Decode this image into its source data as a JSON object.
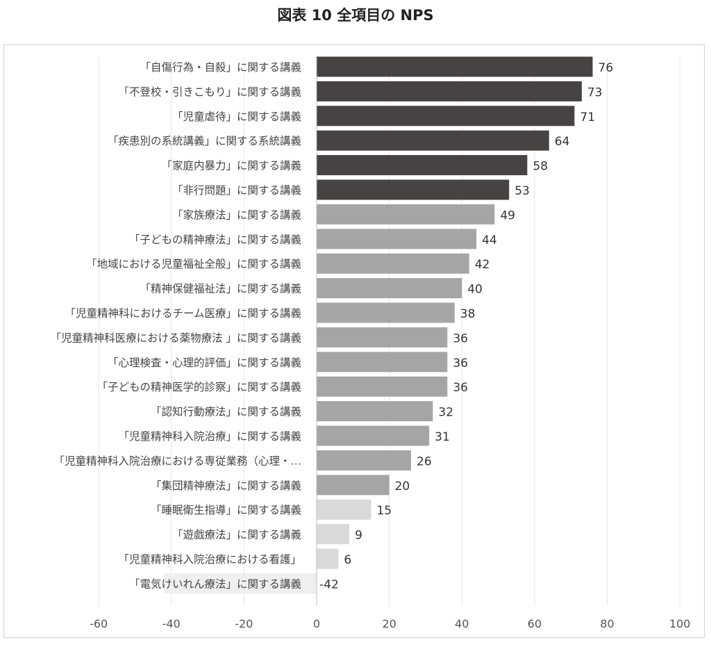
{
  "title": "図表 10 全項目の NPS",
  "chart_data": {
    "type": "bar",
    "orientation": "horizontal",
    "title": "図表 10 全項目の NPS",
    "xlabel": "",
    "ylabel": "",
    "xlim": [
      -60,
      100
    ],
    "x_ticks": [
      "-60",
      "-40",
      "-20",
      "0",
      "20",
      "40",
      "60",
      "80",
      "100"
    ],
    "grid": true,
    "legend": "none",
    "colors": {
      "high": "#474343",
      "mid": "#a5a5a5",
      "low": "#d9d9d9",
      "negative": "#efefef",
      "grid": "#e6e6e6",
      "text": "#444444"
    },
    "categories": [
      "「自傷行為・自殺」に関する講義",
      "「不登校・引きこもり」に関する講義",
      "「児童虐待」に関する講義",
      "「疾患別の系統講義」に関する系統講義",
      "「家庭内暴力」に関する講義",
      "「非行問題」に関する講義",
      "「家族療法」に関する講義",
      "「子どもの精神療法」に関する講義",
      "「地域における児童福祉全般」に関する講義",
      "「精神保健福祉法」に関する講義",
      "「児童精神科におけるチーム医療」に関する講義",
      "「児童精神科医療における薬物療法 」に関する講義",
      "「心理検査・心理的評価」に関する講義",
      "「子どもの精神医学的診察」に関する講義",
      "「認知行動療法」に関する講義",
      "「児童精神科入院治療」に関する講義",
      "「児童精神科入院治療における専従業務（心理・…",
      "「集団精神療法」に関する講義",
      "「睡眠衛生指導」に関する講義",
      "「遊戯療法」に関する講義",
      "「児童精神科入院治療における看護」",
      "「電気けいれん療法」に関する講義"
    ],
    "values": [
      76,
      73,
      71,
      64,
      58,
      53,
      49,
      44,
      42,
      40,
      38,
      36,
      36,
      36,
      32,
      31,
      26,
      20,
      15,
      9,
      6,
      -42
    ],
    "value_labels": [
      "76",
      "73",
      "71",
      "64",
      "58",
      "53",
      "49",
      "44",
      "42",
      "40",
      "38",
      "36",
      "36",
      "36",
      "32",
      "31",
      "26",
      "20",
      "15",
      "9",
      "6",
      "-42"
    ],
    "bar_tier": [
      "high",
      "high",
      "high",
      "high",
      "high",
      "high",
      "mid",
      "mid",
      "mid",
      "mid",
      "mid",
      "mid",
      "mid",
      "mid",
      "mid",
      "mid",
      "mid",
      "mid",
      "low",
      "low",
      "low",
      "negative"
    ]
  }
}
